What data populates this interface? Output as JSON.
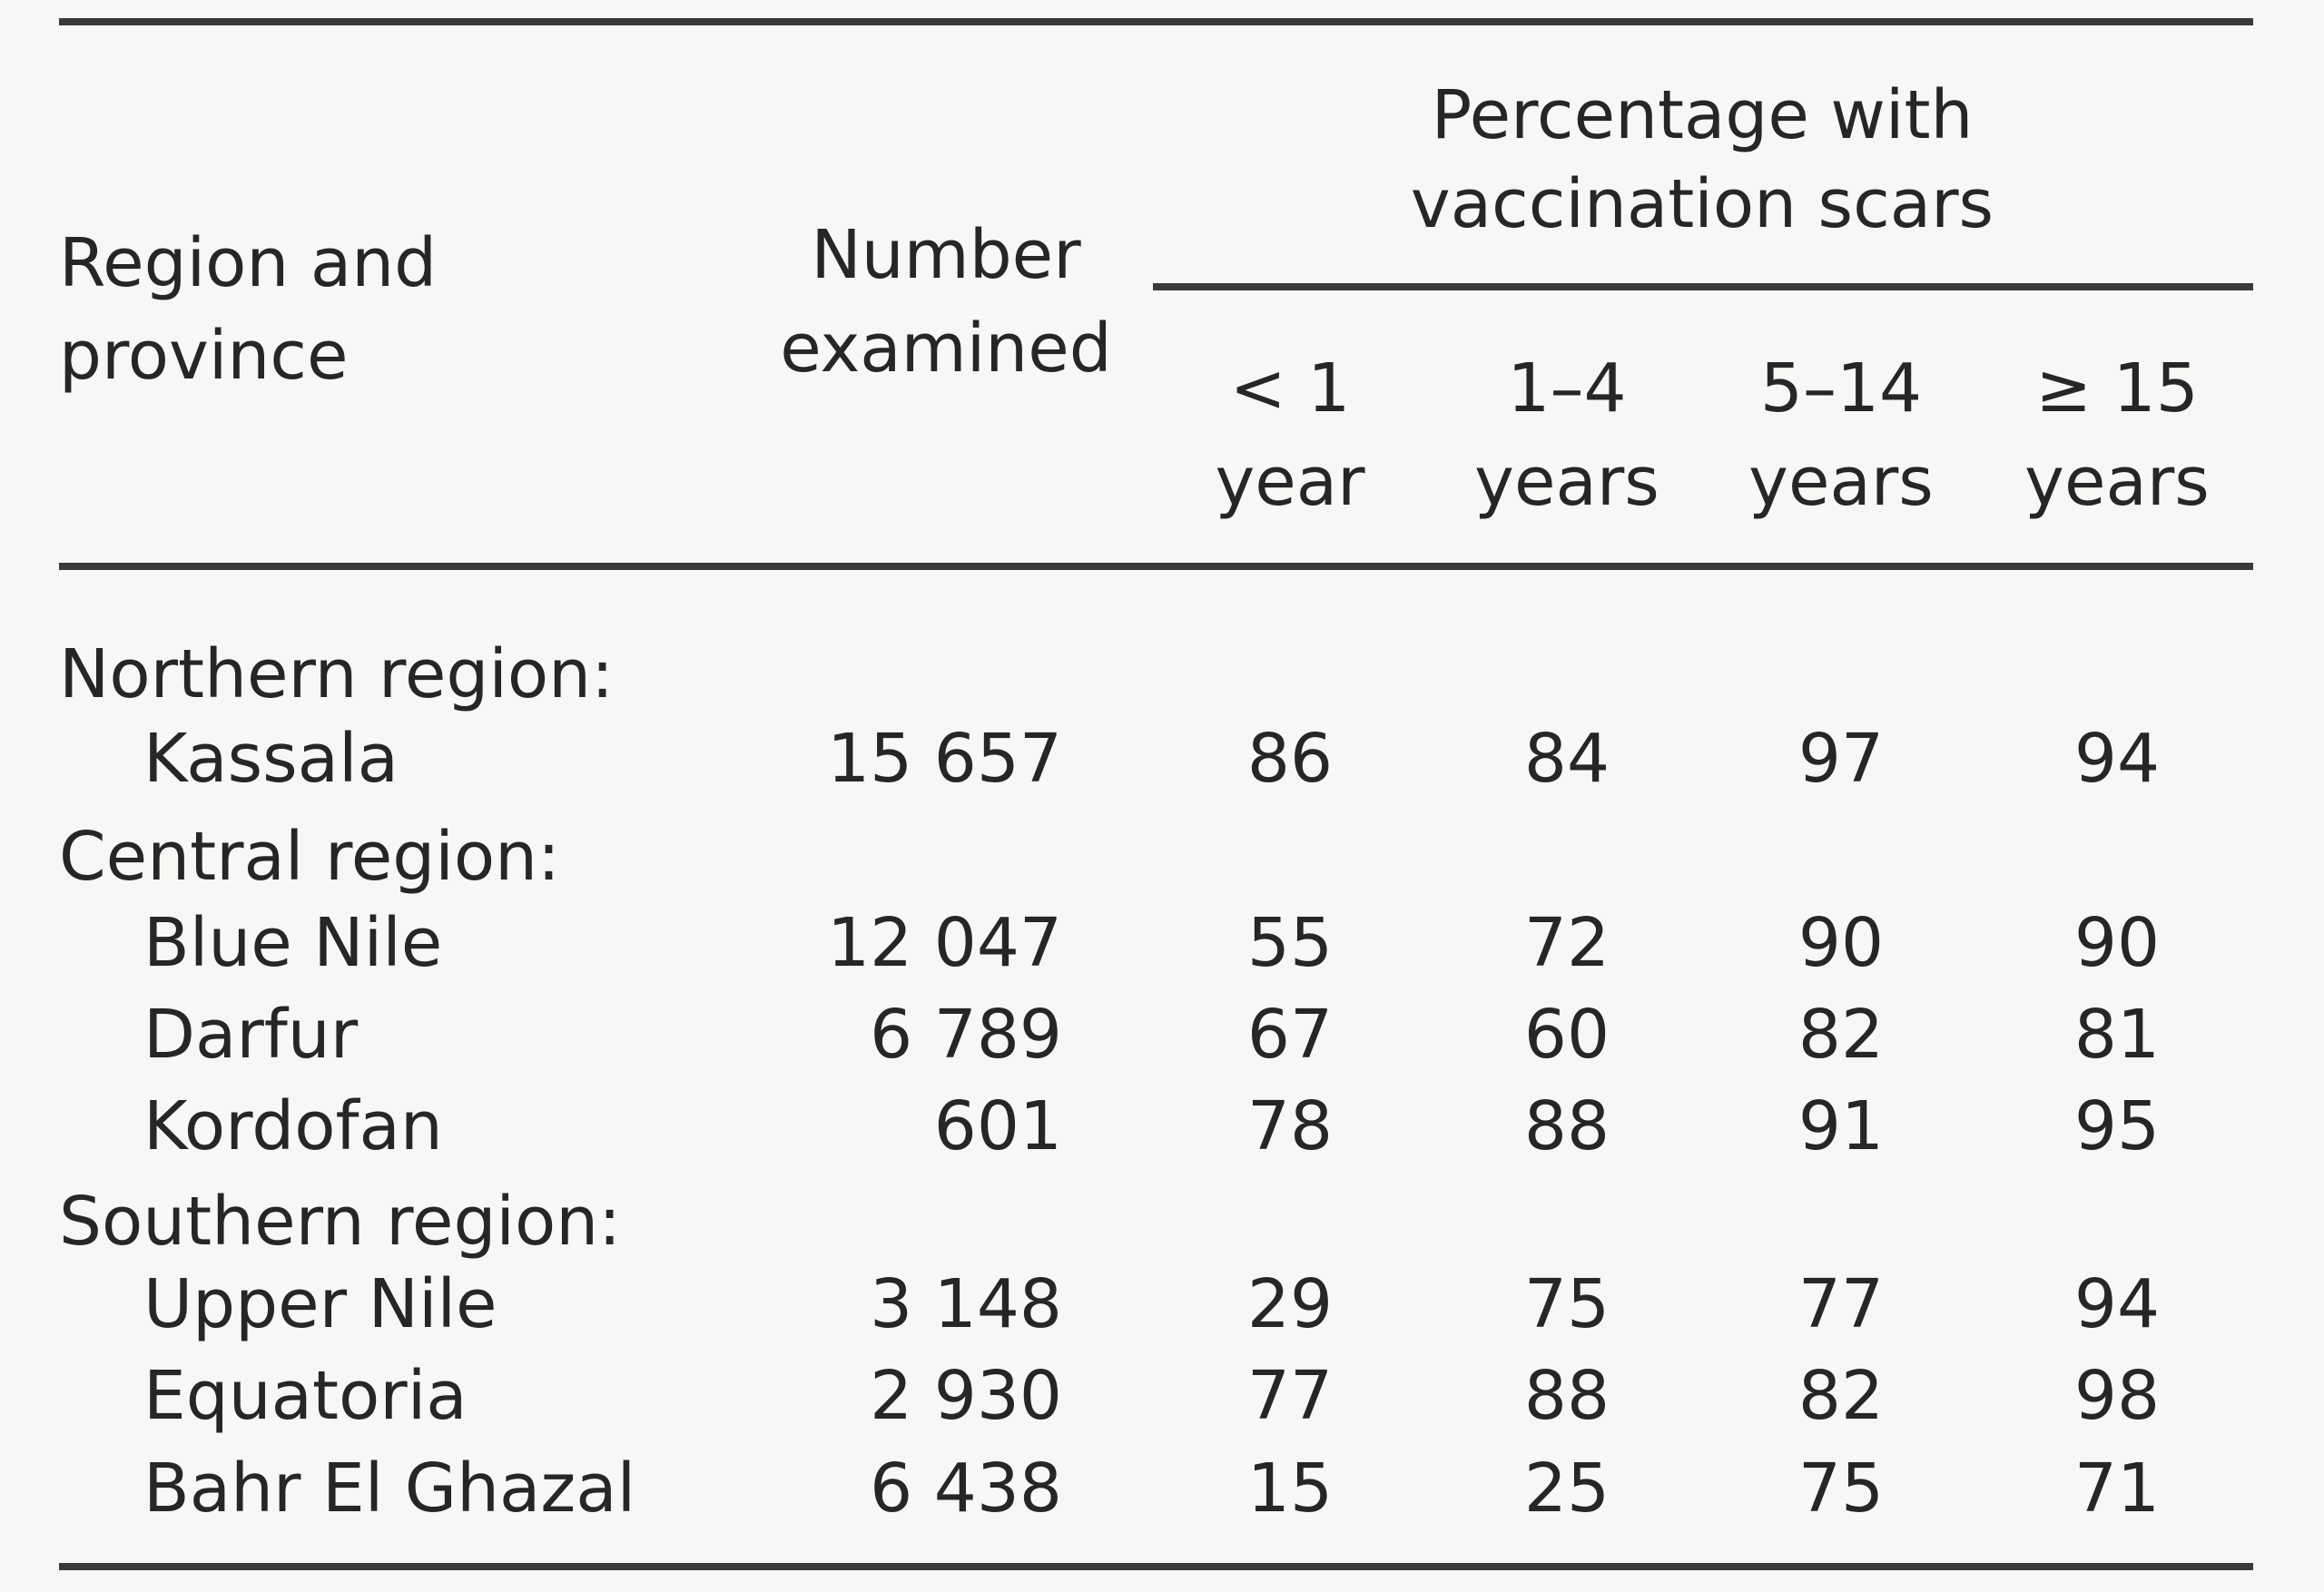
{
  "header": {
    "region_col": [
      "Region and",
      "province"
    ],
    "number_col": [
      "Number",
      "examined"
    ],
    "percentage_group": [
      "Percentage with",
      "vaccination scars"
    ],
    "age_groups": [
      [
        "< 1",
        "year"
      ],
      [
        "1–4",
        "years"
      ],
      [
        "5–14",
        "years"
      ],
      [
        "≥ 15",
        "years"
      ]
    ]
  },
  "rows": [
    {
      "type": "region",
      "label": "Northern region:"
    },
    {
      "type": "province",
      "label": "Kassala",
      "number": "15 657",
      "values": [
        "86",
        "84",
        "97",
        "94"
      ]
    },
    {
      "type": "region",
      "label": "Central region:"
    },
    {
      "type": "province",
      "label": "Blue Nile",
      "number": "12 047",
      "values": [
        "55",
        "72",
        "90",
        "90"
      ]
    },
    {
      "type": "province",
      "label": "Darfur",
      "number": "6 789",
      "values": [
        "67",
        "60",
        "82",
        "81"
      ]
    },
    {
      "type": "province",
      "label": "Kordofan",
      "number": "601",
      "values": [
        "78",
        "88",
        "91",
        "95"
      ]
    },
    {
      "type": "region",
      "label": "Southern region:"
    },
    {
      "type": "province",
      "label": "Upper Nile",
      "number": "3 148",
      "values": [
        "29",
        "75",
        "77",
        "94"
      ]
    },
    {
      "type": "province",
      "label": "Equatoria",
      "number": "2 930",
      "values": [
        "77",
        "88",
        "82",
        "98"
      ]
    },
    {
      "type": "province",
      "label": "Bahr El Ghazal",
      "number": "6 438",
      "values": [
        "15",
        "25",
        "75",
        "71"
      ]
    }
  ]
}
